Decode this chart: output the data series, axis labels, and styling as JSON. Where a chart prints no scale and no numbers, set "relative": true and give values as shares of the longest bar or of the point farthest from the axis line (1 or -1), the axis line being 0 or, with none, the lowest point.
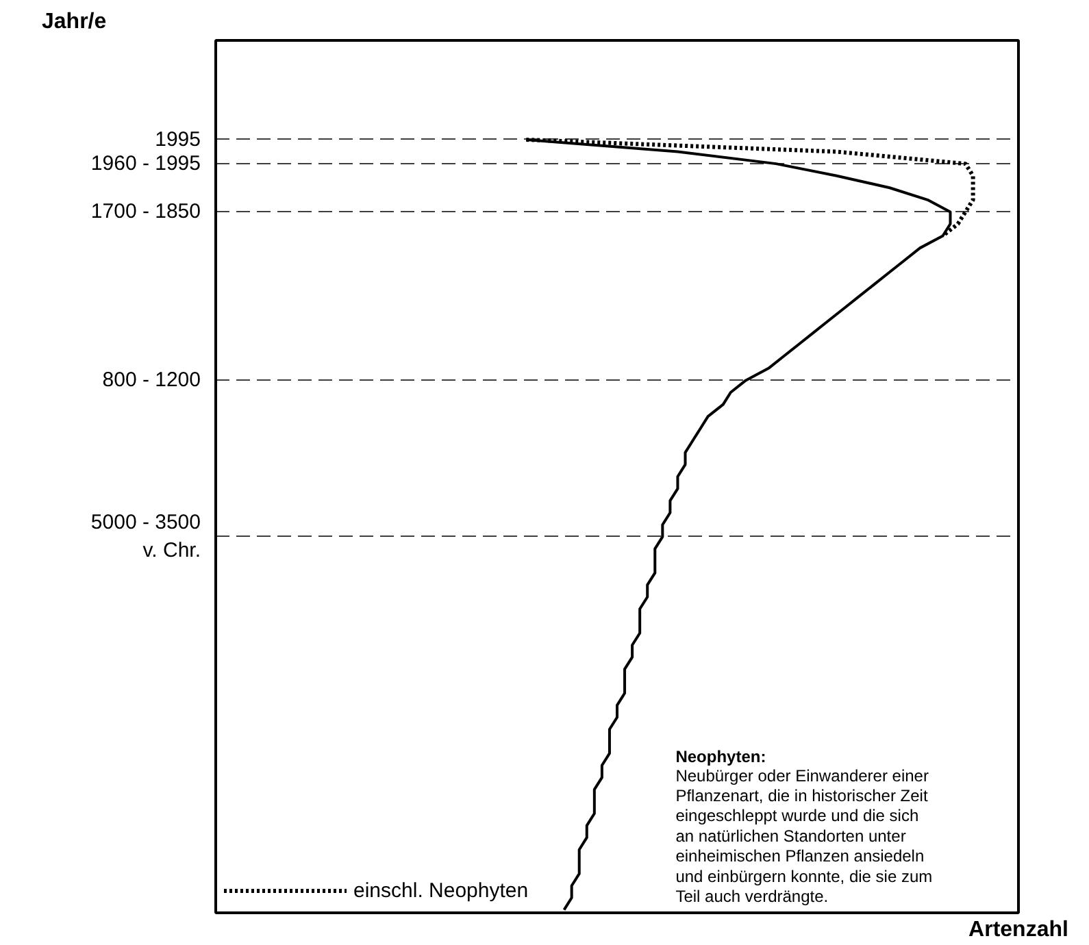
{
  "chart_data": {
    "type": "line",
    "orientation": "horizontal",
    "relative": true,
    "ylabel": "Jahr/e",
    "xlabel": "Artenzahl",
    "grid": "y",
    "legend": "bottom left",
    "categories": [
      "1995",
      null,
      "1960 - 1995",
      null,
      null,
      null,
      "1700 - 1850",
      null,
      null,
      null,
      null,
      null,
      null,
      null,
      null,
      null,
      null,
      null,
      null,
      null,
      "800 - 1200",
      null,
      null,
      null,
      null,
      null,
      null,
      null,
      null,
      null,
      null,
      null,
      null,
      "5000 - 3500\nv. Chr.",
      null,
      null,
      null,
      null,
      null,
      null,
      null,
      null,
      null,
      null,
      null,
      null,
      null,
      null,
      null,
      null,
      null,
      null,
      null,
      null,
      null,
      null,
      null,
      null,
      null,
      null,
      null,
      null,
      null,
      null,
      null
    ],
    "series": [
      {
        "color": "#000000",
        "line_style": "solid",
        "values": [
          0.41,
          0.61,
          0.74,
          0.82,
          0.89,
          0.94,
          0.97,
          0.97,
          0.96,
          0.93,
          0.91,
          0.89,
          0.87,
          0.85,
          0.83,
          0.81,
          0.79,
          0.77,
          0.75,
          0.73,
          0.7,
          0.68,
          0.67,
          0.65,
          0.64,
          0.63,
          0.62,
          0.62,
          0.61,
          0.61,
          0.6,
          0.6,
          0.59,
          0.59,
          0.58,
          0.58,
          0.58,
          0.57,
          0.57,
          0.56,
          0.56,
          0.56,
          0.55,
          0.55,
          0.54,
          0.54,
          0.54,
          0.53,
          0.53,
          0.52,
          0.52,
          0.52,
          0.51,
          0.51,
          0.5,
          0.5,
          0.5,
          0.49,
          0.49,
          0.48,
          0.48,
          0.48,
          0.47,
          0.47,
          0.46
        ]
      },
      {
        "name": "einschl. Neophyten",
        "color": "#000000",
        "line_style": "dotted",
        "values": [
          0.41,
          0.82,
          0.99,
          1.0,
          1.0,
          1.0,
          0.99,
          0.98,
          0.96,
          null,
          null,
          null,
          null,
          null,
          null,
          null,
          null,
          null,
          null,
          null,
          null,
          null,
          null,
          null,
          null,
          null,
          null,
          null,
          null,
          null,
          null,
          null,
          null,
          null,
          null,
          null,
          null,
          null,
          null,
          null,
          null,
          null,
          null,
          null,
          null,
          null,
          null,
          null,
          null,
          null,
          null,
          null,
          null,
          null,
          null,
          null,
          null,
          null,
          null,
          null,
          null,
          null,
          null,
          null,
          null
        ]
      }
    ],
    "annotations": [
      "Neophyten:\nNeubürger oder Einwanderer einer\nPflanzenart, die in historischer Zeit\neingeschleppt wurde und die sich\nan natürlichen Standorten unter\neinheimischen Pflanzen ansiedeln\nund einbürgern konnte, die sie zum\nTeil auch verdrängte."
    ]
  }
}
